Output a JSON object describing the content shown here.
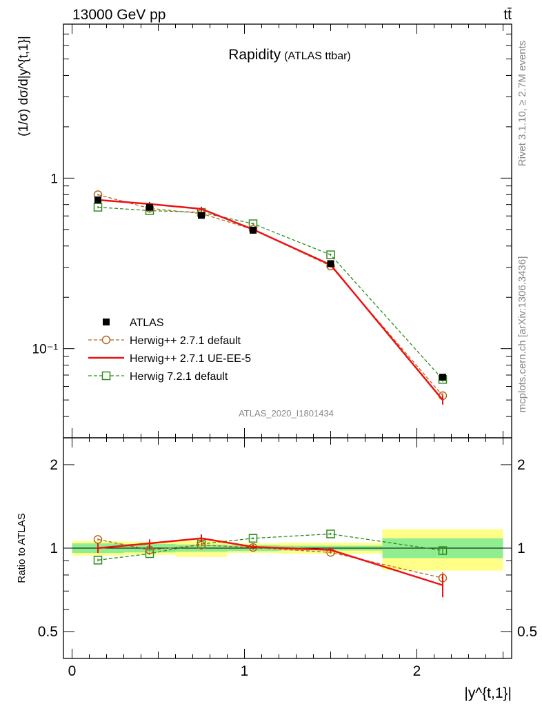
{
  "header": {
    "left": "13000 GeV pp",
    "right": "tt̄"
  },
  "side_labels": {
    "rivet": "Rivet 3.1.10, ≥ 2.7M events",
    "mcplots": "mcplots.cern.ch [arXiv:1306.3436]"
  },
  "chart_data": [
    {
      "type": "line",
      "panel": "main",
      "title": "Rapidity",
      "title_suffix": "(ATLAS ttbar)",
      "ylabel": "(1/σ) dσ/d|y^{t,1}|",
      "yscale": "log",
      "xlim": [
        -0.05,
        2.55
      ],
      "ylim": [
        0.03,
        8.0
      ],
      "yticks": [
        {
          "value": 1,
          "label": "1"
        },
        {
          "value": 0.1,
          "label": "10⁻¹"
        }
      ],
      "watermark": "ATLAS_2020_I1801434",
      "legend_position": "bottom-left",
      "x": [
        0.15,
        0.45,
        0.75,
        1.05,
        1.5,
        2.15
      ],
      "x_bin_edges": [
        0,
        0.3,
        0.6,
        0.9,
        1.2,
        1.8,
        2.5
      ],
      "series": [
        {
          "name": "ATLAS",
          "style": "data",
          "color": "#000000",
          "values": [
            0.745,
            0.675,
            0.605,
            0.495,
            0.315,
            0.068
          ],
          "errors": [
            0.02,
            0.018,
            0.016,
            0.013,
            0.009,
            0.003
          ]
        },
        {
          "name": "Herwig++ 2.7.1 default",
          "style": "circle-dashed",
          "color": "#b5651d",
          "values": [
            0.8,
            0.665,
            0.62,
            0.5,
            0.305,
            0.053
          ],
          "errors": [
            0.01,
            0.01,
            0.01,
            0.008,
            0.006,
            0.002
          ]
        },
        {
          "name": "Herwig++ 2.7.1 UE-EE-5",
          "style": "line-solid",
          "color": "#ee1111",
          "values": [
            0.745,
            0.705,
            0.66,
            0.5,
            0.31,
            0.05
          ],
          "errors": [
            0.025,
            0.02,
            0.02,
            0.012,
            0.008,
            0.003
          ]
        },
        {
          "name": "Herwig 7.2.1 default",
          "style": "square-dashed",
          "color": "#2f8a1c",
          "values": [
            0.675,
            0.645,
            0.63,
            0.54,
            0.355,
            0.066
          ],
          "errors": [
            0.01,
            0.01,
            0.01,
            0.008,
            0.006,
            0.002
          ]
        }
      ]
    },
    {
      "type": "line",
      "panel": "ratio",
      "ylabel": "Ratio to ATLAS",
      "yscale": "log",
      "xlabel": "|y^{t,1}|",
      "xlim": [
        -0.05,
        2.55
      ],
      "ylim": [
        0.4,
        2.5
      ],
      "xticks": [
        0,
        1,
        2
      ],
      "yticks": [
        0.5,
        1,
        2
      ],
      "x": [
        0.15,
        0.45,
        0.75,
        1.05,
        1.5,
        2.15
      ],
      "x_bin_edges": [
        0,
        0.3,
        0.6,
        0.9,
        1.2,
        1.8,
        2.5
      ],
      "band_inner": {
        "color": "#90ee90",
        "low": [
          0.96,
          0.965,
          0.97,
          0.975,
          0.98,
          0.92
        ],
        "high": [
          1.04,
          1.035,
          1.03,
          1.025,
          1.02,
          1.085
        ]
      },
      "band_outer": {
        "color": "#ffff88",
        "low": [
          0.94,
          0.945,
          0.93,
          0.96,
          0.955,
          0.83
        ],
        "high": [
          1.06,
          1.055,
          1.065,
          1.04,
          1.045,
          1.17
        ]
      },
      "series": [
        {
          "name": "Herwig++ 2.7.1 default",
          "style": "circle-dashed",
          "color": "#b5651d",
          "values": [
            1.075,
            0.985,
            1.025,
            1.005,
            0.965,
            0.78
          ],
          "errors": [
            0.01,
            0.01,
            0.01,
            0.01,
            0.01,
            0.04
          ]
        },
        {
          "name": "Herwig++ 2.7.1 UE-EE-5",
          "style": "line-solid",
          "color": "#ee1111",
          "values": [
            1.0,
            1.04,
            1.085,
            1.01,
            0.985,
            0.735
          ],
          "errors": [
            0.04,
            0.035,
            0.035,
            0.02,
            0.02,
            0.07
          ]
        },
        {
          "name": "Herwig 7.2.1 default",
          "style": "square-dashed",
          "color": "#2f8a1c",
          "values": [
            0.905,
            0.955,
            1.035,
            1.085,
            1.125,
            0.98
          ],
          "errors": [
            0.01,
            0.01,
            0.01,
            0.01,
            0.01,
            0.035
          ]
        }
      ]
    }
  ]
}
